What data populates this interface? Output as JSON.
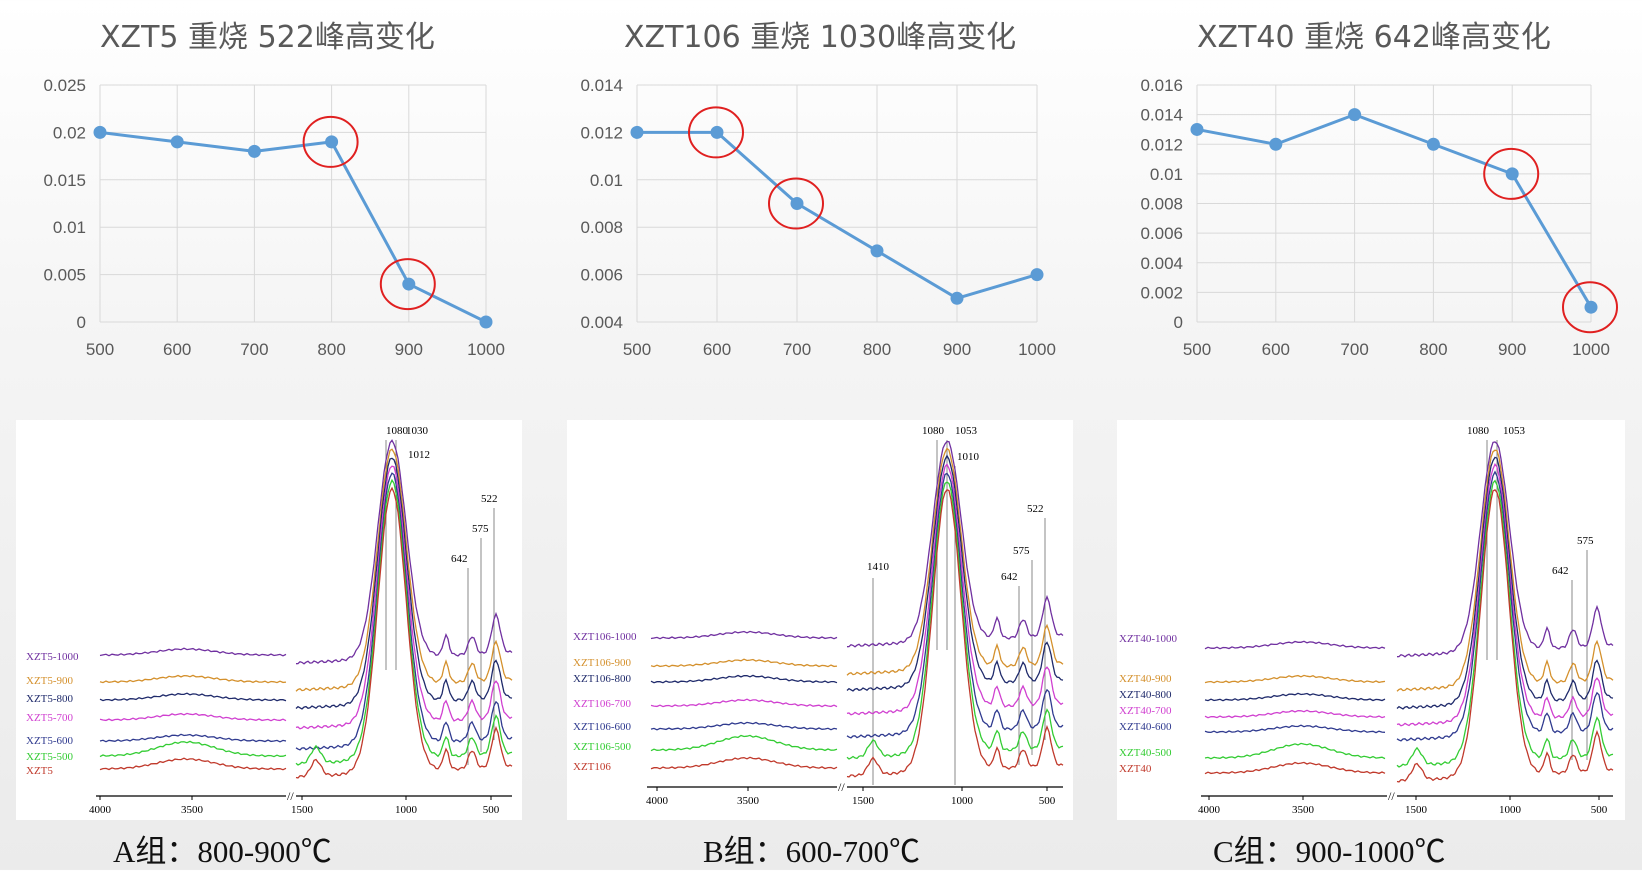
{
  "charts": [
    {
      "title": "XZT5 重烧  522峰高变化"
    },
    {
      "title": "XZT106 重烧 1030峰高变化"
    },
    {
      "title": "XZT40 重烧 642峰高变化"
    }
  ],
  "chart_data": [
    {
      "type": "line",
      "title": "XZT5 重烧  522峰高变化",
      "x": [
        500,
        600,
        700,
        800,
        900,
        1000
      ],
      "values": [
        0.02,
        0.019,
        0.018,
        0.019,
        0.004,
        0
      ],
      "xlim": [
        500,
        1000
      ],
      "ylim": [
        0,
        0.025
      ],
      "yticks": [
        "0",
        "0.005",
        "0.01",
        "0.015",
        "0.02",
        "0.025"
      ],
      "xticks": [
        "500",
        "600",
        "700",
        "800",
        "900",
        "1000"
      ],
      "grid": true,
      "highlighted_x": [
        800,
        900
      ],
      "color": "#5b9bd5",
      "highlight_color": "#e02020"
    },
    {
      "type": "line",
      "title": "XZT106 重烧 1030峰高变化",
      "x": [
        500,
        600,
        700,
        800,
        900,
        1000
      ],
      "values": [
        0.012,
        0.012,
        0.009,
        0.007,
        0.005,
        0.006
      ],
      "xlim": [
        500,
        1000
      ],
      "ylim": [
        0.004,
        0.014
      ],
      "yticks": [
        "0.004",
        "0.006",
        "0.008",
        "0.01",
        "0.012",
        "0.014"
      ],
      "xticks": [
        "500",
        "600",
        "700",
        "800",
        "900",
        "1000"
      ],
      "grid": true,
      "highlighted_x": [
        600,
        700
      ],
      "color": "#5b9bd5",
      "highlight_color": "#e02020"
    },
    {
      "type": "line",
      "title": "XZT40 重烧 642峰高变化",
      "x": [
        500,
        600,
        700,
        800,
        900,
        1000
      ],
      "values": [
        0.013,
        0.012,
        0.014,
        0.012,
        0.01,
        0.001
      ],
      "xlim": [
        500,
        1000
      ],
      "ylim": [
        0,
        0.016
      ],
      "yticks": [
        "0",
        "0.002",
        "0.004",
        "0.006",
        "0.008",
        "0.01",
        "0.012",
        "0.014",
        "0.016"
      ],
      "xticks": [
        "500",
        "600",
        "700",
        "800",
        "900",
        "1000"
      ],
      "grid": true,
      "highlighted_x": [
        900,
        1000
      ],
      "color": "#5b9bd5",
      "highlight_color": "#e02020"
    }
  ],
  "spectra": [
    {
      "series": [
        "XZT5-1000",
        "XZT5-900",
        "XZT5-800",
        "XZT5-700",
        "XZT5-600",
        "XZT5-500",
        "XZT5"
      ],
      "colors": [
        "#7030a0",
        "#d4902c",
        "#1f2a6b",
        "#d040d0",
        "#2f3a8f",
        "#33cc33",
        "#c0392b"
      ],
      "peak_labels": [
        "1080",
        "1030",
        "1012",
        "522",
        "575",
        "642"
      ],
      "xticks": [
        "4000",
        "3500",
        "1500",
        "1000",
        "500"
      ]
    },
    {
      "series": [
        "XZT106-1000",
        "XZT106-900",
        "XZT106-800",
        "XZT106-700",
        "XZT106-600",
        "XZT106-500",
        "XZT106"
      ],
      "colors": [
        "#7030a0",
        "#d4902c",
        "#1f2a6b",
        "#d040d0",
        "#2f3a8f",
        "#33cc33",
        "#c0392b"
      ],
      "peak_labels": [
        "1080",
        "1053",
        "1010",
        "522",
        "575",
        "642",
        "1410"
      ],
      "xticks": [
        "4000",
        "3500",
        "1500",
        "1000",
        "500"
      ]
    },
    {
      "series": [
        "XZT40-1000",
        "XZT40-900",
        "XZT40-800",
        "XZT40-700",
        "XZT40-600",
        "XZT40-500",
        "XZT40"
      ],
      "colors": [
        "#7030a0",
        "#d4902c",
        "#1f2a6b",
        "#d040d0",
        "#2f3a8f",
        "#33cc33",
        "#c0392b"
      ],
      "peak_labels": [
        "1080",
        "1053",
        "575",
        "642"
      ],
      "xticks": [
        "4000",
        "3500",
        "1500",
        "1000",
        "500"
      ]
    }
  ],
  "groups": [
    {
      "label": "A组：800-900℃"
    },
    {
      "label": "B组：600-700℃"
    },
    {
      "label": "C组：900-1000℃"
    }
  ]
}
